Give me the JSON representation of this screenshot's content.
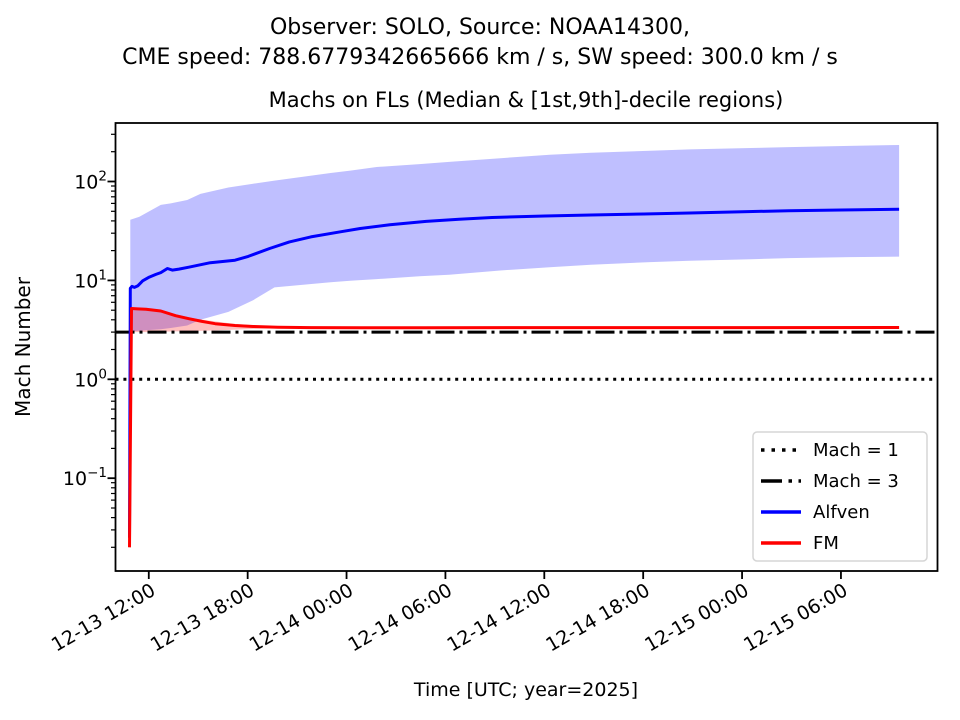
{
  "header": {
    "line1": "Observer: SOLO, Source: NOAA14300,",
    "line2": "CME speed: 788.6779342665666 km / s, SW speed: 300.0 km / s"
  },
  "chart_data": {
    "type": "line",
    "title": "Machs on FLs (Median & [1st,9th]-decile regions)",
    "xlabel": "Time [UTC; year=2025]",
    "ylabel": "Mach Number",
    "y_scale": "log",
    "ylim": [
      0.0115,
      390
    ],
    "grid": false,
    "x_time_start": "2025-12-13 10:50",
    "x_time_end": "2025-12-15 09:30",
    "x_ticks": [
      "12-13 12:00",
      "12-13 18:00",
      "12-14 00:00",
      "12-14 06:00",
      "12-14 12:00",
      "12-14 18:00",
      "12-15 00:00",
      "12-15 06:00"
    ],
    "x_tick_hours": [
      1.17,
      7.17,
      13.17,
      19.17,
      25.17,
      31.17,
      37.17,
      43.17
    ],
    "y_ticks": [
      "10^2",
      "10^1",
      "10^0",
      "10^-1"
    ],
    "y_tick_values": [
      100,
      10,
      1,
      0.1
    ],
    "hlines": [
      {
        "label": "Mach = 1",
        "value": 1,
        "style": "dotted",
        "color": "#000000",
        "width": 3
      },
      {
        "label": "Mach = 3",
        "value": 3,
        "style": "dashdot",
        "color": "#000000",
        "width": 3
      }
    ],
    "series": [
      {
        "name": "Alfven",
        "color": "#0000ff",
        "t_hours": [
          0,
          0.05,
          0.15,
          0.3,
          0.5,
          0.8,
          1.2,
          1.6,
          1.9,
          2.3,
          2.6,
          3.0,
          3.6,
          4.9,
          6.4,
          7.2,
          8.5,
          9.7,
          11,
          12.8,
          14,
          15.8,
          18,
          20,
          22,
          25.2,
          28,
          31.2,
          34,
          37.2,
          40,
          43.2,
          46.7
        ],
        "values": [
          0.025,
          8.3,
          8.7,
          8.5,
          8.8,
          9.9,
          10.8,
          11.5,
          12.0,
          13.2,
          12.7,
          13.0,
          13.6,
          15.1,
          16.0,
          17.5,
          21.0,
          24.5,
          27.5,
          31.0,
          33.5,
          36.5,
          39.5,
          41.5,
          43.3,
          44.8,
          45.8,
          46.9,
          48.0,
          49.5,
          50.5,
          51.5,
          52.5
        ],
        "band": {
          "label": "[1st,9th]-decile region",
          "fill": "#0000ff",
          "opacity": 0.25,
          "t_hours": [
            0.05,
            0.6,
            1.2,
            1.9,
            2.5,
            3.5,
            4.3,
            6.0,
            7.5,
            8.8,
            12.2,
            13.4,
            15,
            17.6,
            19.4,
            22.5,
            25.5,
            28,
            31.6,
            34,
            37.7,
            40,
            43.7,
            46.7
          ],
          "upper": [
            41,
            44,
            50,
            58,
            60,
            65,
            75,
            87,
            95,
            102,
            122,
            129,
            140,
            150,
            158,
            172,
            186,
            195,
            205,
            211,
            218,
            223,
            229,
            234
          ],
          "lower": [
            3.05,
            3.1,
            3.15,
            3.2,
            3.3,
            3.5,
            4.0,
            4.8,
            6.3,
            8.5,
            9.6,
            9.9,
            10.3,
            11.0,
            11.4,
            12.6,
            13.6,
            14.4,
            15.3,
            15.8,
            16.4,
            16.8,
            17.2,
            17.4
          ]
        }
      },
      {
        "name": "FM",
        "color": "#ff0000",
        "t_hours": [
          0,
          0.12,
          0.5,
          1.0,
          1.9,
          2.8,
          3.6,
          4.4,
          5.2,
          6.4,
          7.5,
          9.0,
          11.0,
          14.0,
          18.0,
          24.0,
          30.0,
          38.0,
          46.7
        ],
        "values": [
          0.02,
          5.2,
          5.15,
          5.1,
          4.9,
          4.4,
          4.1,
          3.85,
          3.65,
          3.5,
          3.42,
          3.36,
          3.33,
          3.32,
          3.32,
          3.33,
          3.33,
          3.33,
          3.34
        ],
        "band": {
          "label": "[1st,9th]-decile region",
          "fill": "#ff0000",
          "opacity": 0.25,
          "t_hours": [
            0.1,
            1.0,
            1.9,
            2.8,
            4.0,
            5.2,
            6.4,
            8.0,
            10.0,
            12.0
          ],
          "upper": [
            5.35,
            5.25,
            5.05,
            4.55,
            4.1,
            3.85,
            3.62,
            3.48,
            3.4,
            3.36
          ],
          "lower": [
            3.0,
            3.0,
            3.02,
            3.05,
            3.08,
            3.12,
            3.18,
            3.25,
            3.3,
            3.33
          ]
        }
      }
    ],
    "legend": {
      "position": "lower right",
      "entries": [
        {
          "label": "Mach = 1",
          "style": "dotted",
          "color": "#000000"
        },
        {
          "label": "Mach = 3",
          "style": "dashdot",
          "color": "#000000"
        },
        {
          "label": "Alfven",
          "style": "solid",
          "color": "#0000ff"
        },
        {
          "label": "FM",
          "style": "solid",
          "color": "#ff0000"
        }
      ]
    }
  }
}
